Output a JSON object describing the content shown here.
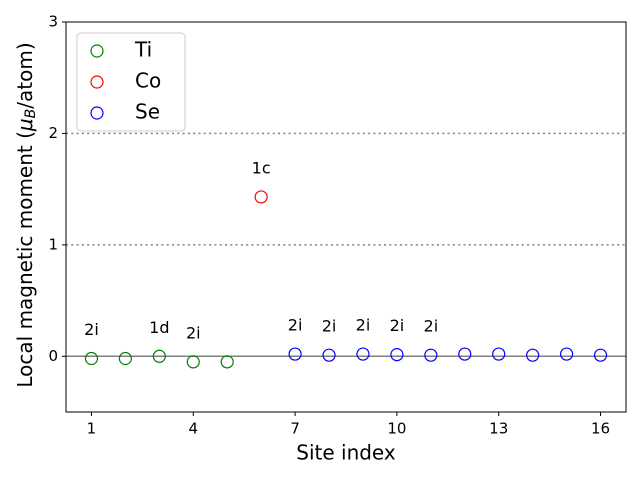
{
  "chart_data": {
    "type": "scatter",
    "xlabel": "Site index",
    "ylabel": [
      "Local magnetic moment (",
      "μ",
      "B",
      "/atom)"
    ],
    "xlim": [
      0.25,
      16.75
    ],
    "ylim": [
      -0.5,
      3
    ],
    "xticks": [
      1,
      4,
      7,
      10,
      13,
      16
    ],
    "yticks": [
      0,
      1,
      2,
      3
    ],
    "legend": "upper left",
    "hlines": [
      {
        "y": 0,
        "style": "solid",
        "color": "#808080"
      },
      {
        "y": 1,
        "style": "dotted",
        "color": "#808080"
      },
      {
        "y": 2,
        "style": "dotted",
        "color": "#808080"
      }
    ],
    "series": [
      {
        "name": "Ti",
        "color": "#008000",
        "x": [
          1,
          2,
          3,
          4,
          5
        ],
        "values": [
          -0.02,
          -0.02,
          0.0,
          -0.05,
          -0.05
        ]
      },
      {
        "name": "Co",
        "color": "#ff0000",
        "x": [
          6
        ],
        "values": [
          1.43
        ]
      },
      {
        "name": "Se",
        "color": "#0000ff",
        "x": [
          7,
          8,
          9,
          10,
          11,
          12,
          13,
          14,
          15,
          16
        ],
        "values": [
          0.02,
          0.01,
          0.02,
          0.015,
          0.01,
          0.02,
          0.02,
          0.01,
          0.02,
          0.01
        ]
      }
    ],
    "annotations": [
      {
        "x": 1,
        "text": "2i"
      },
      {
        "x": 3,
        "text": "1d"
      },
      {
        "x": 4,
        "text": "2i"
      },
      {
        "x": 6,
        "text": "1c"
      },
      {
        "x": 7,
        "text": "2i"
      },
      {
        "x": 8,
        "text": "2i"
      },
      {
        "x": 9,
        "text": "2i"
      },
      {
        "x": 10,
        "text": "2i"
      },
      {
        "x": 11,
        "text": "2i"
      }
    ]
  }
}
